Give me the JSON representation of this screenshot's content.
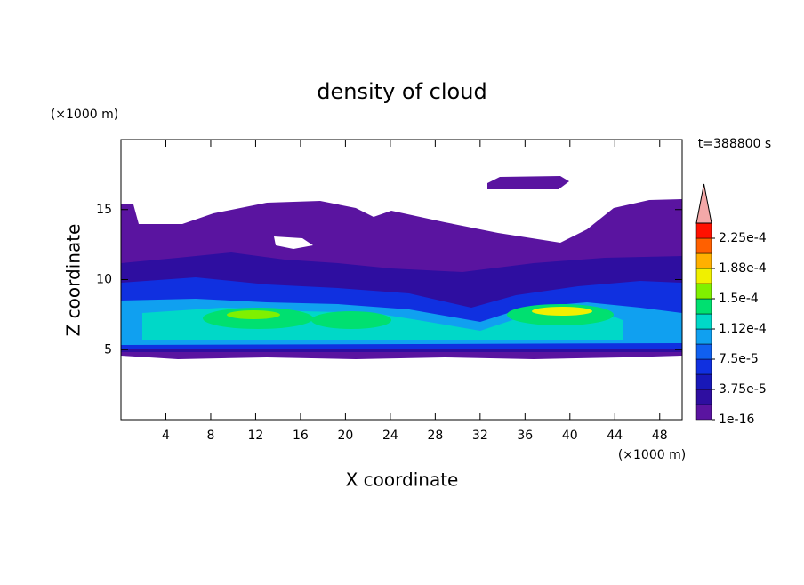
{
  "chart_data": {
    "type": "contour",
    "title": "density of cloud",
    "xlabel": "X coordinate",
    "ylabel": "Z coordinate",
    "x_unit_label": "(×1000 m)",
    "y_unit_label": "(×1000 m)",
    "time_label": "t=388800 s",
    "xlim": [
      0,
      50
    ],
    "ylim": [
      0,
      20
    ],
    "xticks": [
      4,
      8,
      12,
      16,
      20,
      24,
      28,
      32,
      36,
      40,
      44,
      48
    ],
    "yticks": [
      5,
      10,
      15
    ],
    "colorbar": {
      "levels": [
        1e-16,
        1.875e-05,
        3.75e-05,
        5.625e-05,
        7.5e-05,
        9.375e-05,
        0.0001125,
        0.00013125,
        0.00015,
        0.00016875,
        0.0001875,
        0.00020625,
        0.000225,
        0.00024375
      ],
      "colors": [
        "#5a14a0",
        "#2e0ea0",
        "#1818b8",
        "#1030e0",
        "#1060f0",
        "#10a0f0",
        "#00d8c8",
        "#00e070",
        "#80f000",
        "#f0f000",
        "#ffb000",
        "#ff6000",
        "#ff1000"
      ],
      "extend_color": "#f4a8a8",
      "ticks": [
        {
          "value": 1e-16,
          "label": "1e-16"
        },
        {
          "value": 3.75e-05,
          "label": "3.75e-5"
        },
        {
          "value": 7.5e-05,
          "label": "7.5e-5"
        },
        {
          "value": 0.0001125,
          "label": "1.12e-4"
        },
        {
          "value": 0.00015,
          "label": "1.5e-4"
        },
        {
          "value": 0.0001875,
          "label": "1.88e-4"
        },
        {
          "value": 0.000225,
          "label": "2.25e-4"
        }
      ]
    }
  }
}
